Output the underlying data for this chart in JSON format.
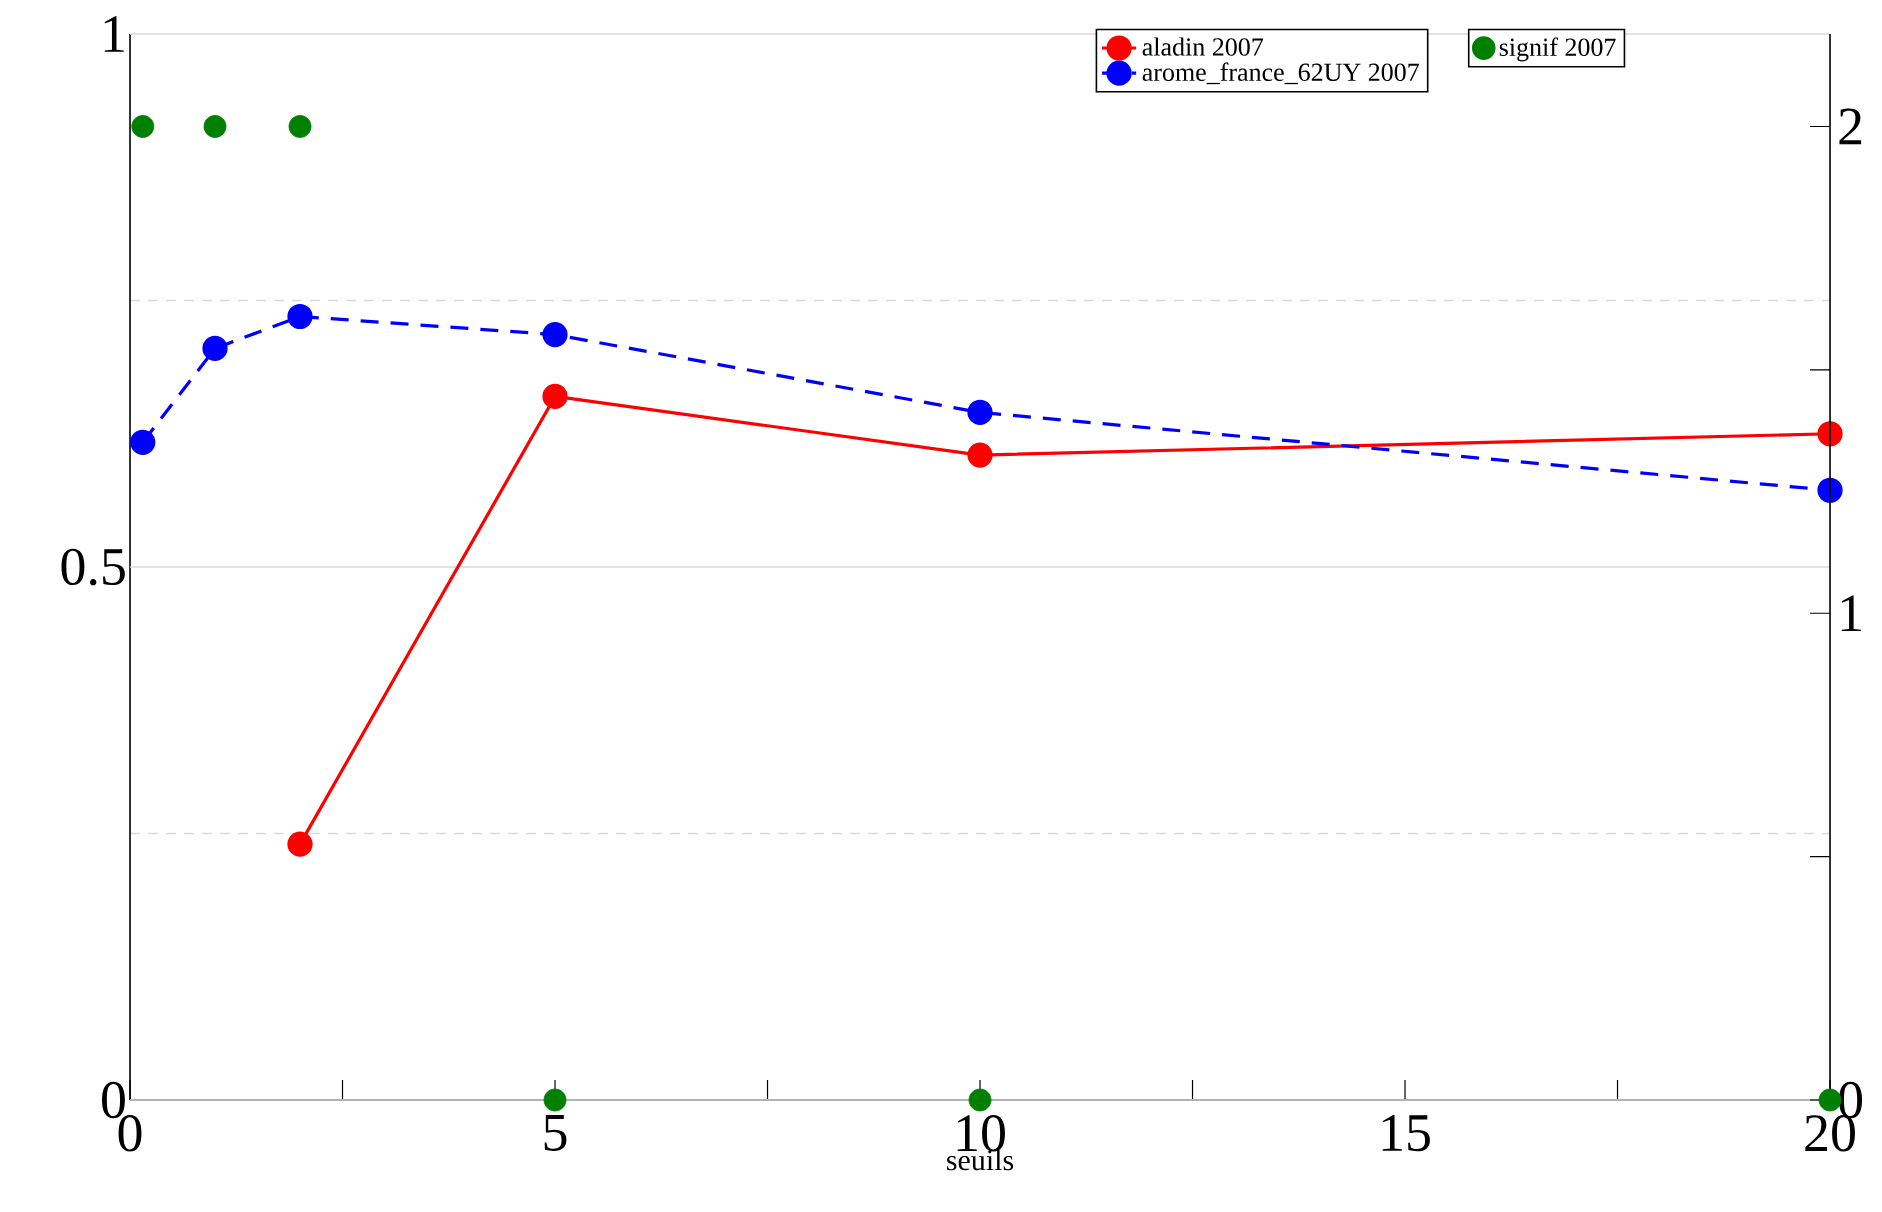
{
  "chart_data": {
    "type": "line",
    "xlabel": "seuils",
    "x": [
      0.15,
      1,
      2,
      5,
      10,
      20
    ],
    "xlim": [
      0,
      20
    ],
    "xticks": [
      0,
      {
        "value": 2.5,
        "label": null
      },
      5,
      {
        "value": 7.5,
        "label": null
      },
      10,
      {
        "value": 12.5,
        "label": null
      },
      15,
      {
        "value": 17.5,
        "label": null
      },
      20
    ],
    "ylim": [
      0,
      1
    ],
    "yticks": [
      0,
      {
        "value": 0.25,
        "label": null
      },
      0.5,
      {
        "value": 0.75,
        "label": null
      },
      1
    ],
    "y2lim": [
      0,
      2.19
    ],
    "y2ticks": [
      0,
      {
        "value": 0.5,
        "label": null
      },
      1,
      {
        "value": 1.5,
        "label": null
      },
      2
    ],
    "ref_lines": [
      {
        "axis": "y",
        "value": 0.5,
        "color": "#d9d9d9",
        "line_style": "solid"
      }
    ],
    "grid": "y",
    "legend": "top right",
    "marker": "circle",
    "series": [
      {
        "name": "aladin 2007",
        "color": "#ff0000",
        "line_style": "solid",
        "values": [
          null,
          null,
          0.24,
          0.66,
          0.605,
          0.625
        ]
      },
      {
        "name": "arome_france_62UY 2007",
        "color": "#0000ff",
        "line_style": "dashed",
        "values": [
          0.617,
          0.705,
          0.735,
          0.718,
          0.645,
          0.572
        ]
      },
      {
        "name": "signif 2007",
        "type": "scatter",
        "axis": "y2",
        "color": "#008000",
        "values": [
          2,
          2,
          2,
          0,
          0,
          0
        ]
      }
    ]
  }
}
